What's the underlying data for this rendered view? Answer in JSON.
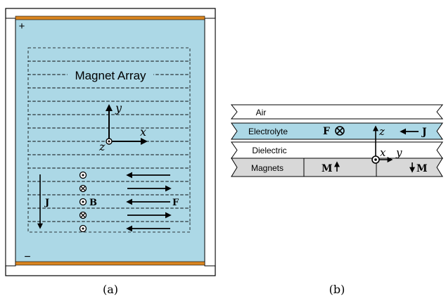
{
  "colors": {
    "electrolyte": "#acd8e6",
    "electrode": "#d98521",
    "magnets": "#d8d8d8",
    "stroke": "#000000",
    "wall": "#ffffff"
  },
  "panel_a": {
    "caption": "(a)",
    "plus_label": "+",
    "minus_label": "−",
    "magnet_array_label": "Magnet Array",
    "axes": {
      "y": "y",
      "x": "x",
      "z": "z"
    },
    "current_label": "J",
    "field_label": "B",
    "force_label": "F"
  },
  "panel_b": {
    "caption": "(b)",
    "layers": {
      "air": "Air",
      "electrolyte": "Electrolyte",
      "dielectric": "Dielectric",
      "magnets": "Magnets"
    },
    "force_label": "F",
    "current_label": "J",
    "magnetization_label": "M",
    "axes": {
      "z": "z",
      "x": "x",
      "y": "y"
    }
  }
}
